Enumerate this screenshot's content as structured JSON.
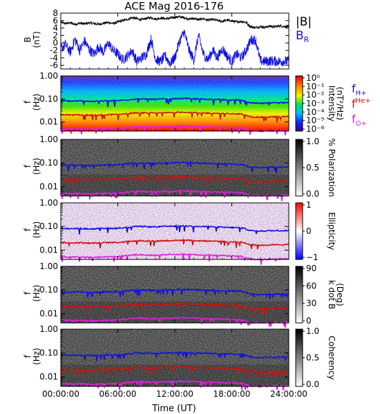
{
  "chart_data": {
    "type": "line",
    "title": "ACE Mag 2016-176",
    "xlabel": "Time (UT)",
    "x_ticks": [
      "00:00:00",
      "06:00:00",
      "12:00:00",
      "18:00:00",
      "24:00:00"
    ],
    "x_range_hours": [
      0,
      24
    ],
    "panels": [
      {
        "id": "b-field",
        "type": "line",
        "ylabel": "B",
        "yunit": "(nT)",
        "ylim": [
          -7,
          8
        ],
        "y_ticks": [
          "-6",
          "-4",
          "-2",
          "0",
          "2",
          "4",
          "6",
          "8"
        ],
        "legend": [
          {
            "label": "|B|",
            "sub": "",
            "color": "#000000"
          },
          {
            "label": "B",
            "sub": "R",
            "color": "#1010e0"
          }
        ],
        "series": [
          {
            "name": "|B|",
            "color": "#000000",
            "x": [
              0,
              0.5,
              1,
              1.5,
              2,
              2.5,
              3,
              3.5,
              4,
              4.5,
              5,
              5.5,
              6,
              6.5,
              7,
              7.5,
              8,
              8.5,
              9,
              9.5,
              10,
              10.5,
              11,
              11.5,
              12,
              12.5,
              13,
              13.5,
              14,
              14.5,
              15,
              15.5,
              16,
              16.5,
              17,
              17.5,
              18,
              18.5,
              19,
              19.5,
              20,
              20.5,
              21,
              21.5,
              22,
              22.5,
              23,
              23.5,
              24
            ],
            "values": [
              5.5,
              5.2,
              5.4,
              5.0,
              5.3,
              5.1,
              5.4,
              5.2,
              5.0,
              5.3,
              5.5,
              5.2,
              5.6,
              6.0,
              6.3,
              6.8,
              6.5,
              6.2,
              6.6,
              6.8,
              6.4,
              6.7,
              6.5,
              6.6,
              6.9,
              7.0,
              6.8,
              6.4,
              6.6,
              6.2,
              6.5,
              6.1,
              6.3,
              6.0,
              5.8,
              6.1,
              5.9,
              5.6,
              5.8,
              5.5,
              4.3,
              4.1,
              4.4,
              4.2,
              4.5,
              4.3,
              4.6,
              4.4,
              4.5
            ]
          },
          {
            "name": "B_R",
            "color": "#1010e0",
            "x": [
              0,
              0.5,
              1,
              1.5,
              2,
              2.5,
              3,
              3.5,
              4,
              4.5,
              5,
              5.5,
              6,
              6.5,
              7,
              7.5,
              8,
              8.5,
              9,
              9.5,
              10,
              10.5,
              11,
              11.5,
              12,
              12.5,
              13,
              13.5,
              14,
              14.5,
              15,
              15.5,
              16,
              16.5,
              17,
              17.5,
              18,
              18.5,
              19,
              19.5,
              20,
              20.5,
              21,
              21.5,
              22,
              22.5,
              23,
              23.5,
              24
            ],
            "values": [
              -1.5,
              -0.5,
              -2.5,
              1.0,
              -2.0,
              0.5,
              -1.8,
              -3.0,
              -1.0,
              -2.5,
              0.0,
              -2.0,
              -3.0,
              -4.5,
              -3.5,
              -2.0,
              -5.0,
              -4.0,
              -3.0,
              1.0,
              -4.5,
              -5.0,
              -3.5,
              -5.5,
              -4.0,
              0.5,
              3.0,
              -2.0,
              -4.5,
              2.0,
              -3.0,
              -4.5,
              -2.0,
              -4.0,
              -1.5,
              -3.5,
              -5.0,
              -3.0,
              -4.0,
              -2.0,
              0.8,
              0.9,
              -4.8,
              -5.0,
              -4.8,
              -4.9,
              -5.0,
              -4.9,
              -5.0
            ]
          }
        ]
      },
      {
        "id": "intensity",
        "type": "heatmap",
        "ylabel": "f",
        "yunit": "(Hz)",
        "ylim": [
          0.004,
          1.0
        ],
        "yscale": "log",
        "y_ticks": [
          "1.00",
          "0.10",
          "0.01"
        ],
        "colorbar_label": "Intensity",
        "colorbar_unit": "(nT²/Hz)",
        "colorbar_ticks": [
          "10⁰",
          "10⁻¹",
          "10⁻²",
          "10⁻³",
          "10⁻⁴",
          "10⁻⁵",
          "10⁻⁶"
        ],
        "colorbar_range": [
          1e-06,
          1.0
        ],
        "legend": [
          {
            "label": "f",
            "sub": "H+",
            "color": "#1010e0"
          },
          {
            "label": "f",
            "sup": "He+",
            "color": "#d01010"
          },
          {
            "label": "f",
            "sub": "O+",
            "color": "#e020e0"
          }
        ]
      },
      {
        "id": "polarization",
        "type": "heatmap",
        "ylabel": "f",
        "yunit": "(Hz)",
        "ylim": [
          0.004,
          1.0
        ],
        "yscale": "log",
        "y_ticks": [
          "1.00",
          "0.10",
          "0.01"
        ],
        "colorbar_label": "% Polarization",
        "colorbar_ticks": [
          "1.0",
          "0.5",
          "0.0"
        ],
        "colorbar_range": [
          0,
          1
        ]
      },
      {
        "id": "ellipticity",
        "type": "heatmap",
        "ylabel": "f",
        "yunit": "(Hz)",
        "ylim": [
          0.004,
          1.0
        ],
        "yscale": "log",
        "y_ticks": [
          "1.00",
          "0.10",
          "0.01"
        ],
        "colorbar_label": "Ellipticity",
        "colorbar_ticks": [
          "1",
          "0",
          "−1"
        ],
        "colorbar_range": [
          -1,
          1
        ]
      },
      {
        "id": "k-dot-b",
        "type": "heatmap",
        "ylabel": "f",
        "yunit": "(Hz)",
        "ylim": [
          0.004,
          1.0
        ],
        "yscale": "log",
        "y_ticks": [
          "1.00",
          "0.10",
          "0.01"
        ],
        "colorbar_label": "k dot B",
        "colorbar_unit": "(Deg)",
        "colorbar_ticks": [
          "90",
          "60",
          "30",
          "0"
        ],
        "colorbar_range": [
          0,
          90
        ]
      },
      {
        "id": "coherency",
        "type": "heatmap",
        "ylabel": "f",
        "yunit": "(Hz)",
        "ylim": [
          0.004,
          1.0
        ],
        "yscale": "log",
        "y_ticks": [
          "1.00",
          "0.10",
          "0.01"
        ],
        "colorbar_label": "Coherency",
        "colorbar_ticks": [
          "1.0",
          "0.5",
          "0.0"
        ],
        "colorbar_range": [
          0,
          1
        ]
      }
    ],
    "gyrofrequency_lines": {
      "x": [
        0,
        1,
        2,
        3,
        4,
        5,
        6,
        7,
        8,
        9,
        10,
        11,
        12,
        13,
        14,
        15,
        16,
        17,
        18,
        19,
        20,
        21,
        22,
        23,
        24
      ],
      "series": [
        {
          "name": "fH+",
          "color": "#1010e0",
          "values": [
            0.085,
            0.08,
            0.082,
            0.078,
            0.08,
            0.083,
            0.084,
            0.092,
            0.1,
            0.098,
            0.096,
            0.1,
            0.102,
            0.106,
            0.1,
            0.098,
            0.096,
            0.092,
            0.09,
            0.088,
            0.066,
            0.064,
            0.066,
            0.067,
            0.068
          ]
        },
        {
          "name": "fHe+",
          "color": "#d01010",
          "values": [
            0.021,
            0.02,
            0.0205,
            0.0195,
            0.02,
            0.0208,
            0.021,
            0.023,
            0.025,
            0.0245,
            0.024,
            0.025,
            0.0255,
            0.0265,
            0.025,
            0.0245,
            0.024,
            0.023,
            0.0225,
            0.022,
            0.0165,
            0.016,
            0.0165,
            0.0168,
            0.017
          ]
        },
        {
          "name": "fO+",
          "color": "#e020e0",
          "values": [
            0.0053,
            0.005,
            0.0051,
            0.0049,
            0.005,
            0.0052,
            0.0053,
            0.0058,
            0.0063,
            0.0061,
            0.006,
            0.0063,
            0.0064,
            0.0066,
            0.0063,
            0.0061,
            0.006,
            0.0058,
            0.0056,
            0.0055,
            0.0041,
            0.004,
            0.0041,
            0.0042,
            0.0043
          ]
        }
      ]
    }
  }
}
